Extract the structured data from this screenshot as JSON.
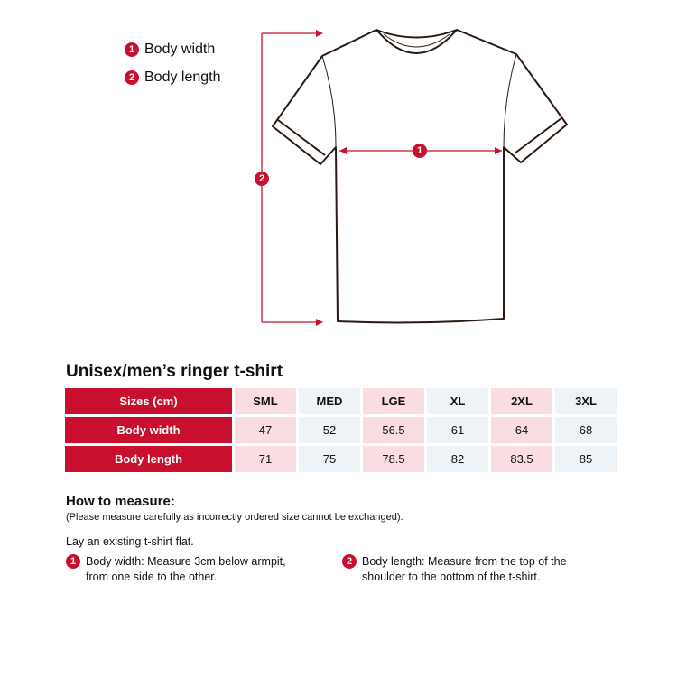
{
  "legend": [
    {
      "num": "1",
      "label": "Body width"
    },
    {
      "num": "2",
      "label": "Body length"
    }
  ],
  "diagram": {
    "width_marker": "1",
    "length_marker": "2",
    "accent_color": "#c8102e",
    "outline_color": "#2a1a12"
  },
  "table": {
    "title": "Unisex/men’s ringer t-shirt",
    "header": "Sizes (cm)",
    "sizes": [
      "SML",
      "MED",
      "LGE",
      "XL",
      "2XL",
      "3XL"
    ],
    "rows": [
      {
        "label": "Body width",
        "values": [
          "47",
          "52",
          "56.5",
          "61",
          "64",
          "68"
        ]
      },
      {
        "label": "Body length",
        "values": [
          "71",
          "75",
          "78.5",
          "82",
          "83.5",
          "85"
        ]
      }
    ]
  },
  "measure": {
    "heading": "How to measure:",
    "note": "(Please measure carefully as incorrectly ordered size cannot be exchanged).",
    "intro": "Lay an existing t-shirt flat.",
    "steps": [
      {
        "num": "1",
        "line1": "Body width: Measure 3cm below armpit,",
        "line2": "from one side to the other."
      },
      {
        "num": "2",
        "line1": "Body length: Measure from the top of the",
        "line2": "shoulder to the bottom of the t-shirt."
      }
    ]
  }
}
